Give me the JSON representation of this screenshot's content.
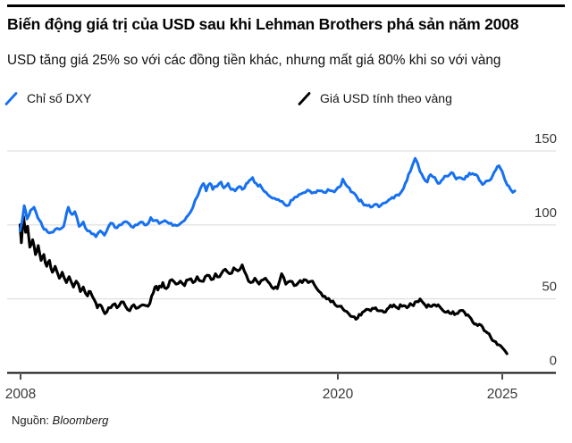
{
  "header": {
    "title": "Biến động giá trị của USD sau khi Lehman Brothers phá sản năm 2008",
    "subtitle": "USD tăng giá 25% so với các đồng tiền khác, nhưng mất giá 80% khi so với vàng"
  },
  "legend": [
    {
      "label": "Chỉ số DXY",
      "color": "#1670f0"
    },
    {
      "label": "Giá USD tính theo vàng",
      "color": "#000000"
    }
  ],
  "source": {
    "prefix": "Nguồn:",
    "name": "Bloomberg"
  },
  "chart_data": {
    "type": "line",
    "title": "Biến động giá trị của USD sau khi Lehman Brothers phá sản năm 2008",
    "xlabel": "",
    "ylabel": "",
    "xlim": [
      2008.7,
      2025.4
    ],
    "ylim": [
      0,
      150
    ],
    "grid": true,
    "legend_position": "top",
    "grid_color": "#d8d8d8",
    "axis_color": "#0f0f0f",
    "label_color": "#3a3a3a",
    "x_ticks": [
      {
        "label": "2008",
        "year": 2008.72
      },
      {
        "label": "2020",
        "year": 2020.0
      },
      {
        "label": "2025",
        "year": 2025.0
      }
    ],
    "y_ticks": [
      0,
      50,
      100,
      150
    ],
    "series": [
      {
        "name": "Giá USD tính theo vàng",
        "color": "#000000",
        "width": 3.1,
        "noise": 1.7,
        "points": [
          [
            2008.7,
            100
          ],
          [
            2008.75,
            88
          ],
          [
            2008.82,
            106
          ],
          [
            2008.9,
            95
          ],
          [
            2008.97,
            99
          ],
          [
            2009.05,
            85
          ],
          [
            2009.15,
            90
          ],
          [
            2009.25,
            80
          ],
          [
            2009.35,
            86
          ],
          [
            2009.45,
            76
          ],
          [
            2009.55,
            80
          ],
          [
            2009.65,
            72
          ],
          [
            2009.75,
            76
          ],
          [
            2009.85,
            68
          ],
          [
            2009.95,
            72
          ],
          [
            2010.1,
            64
          ],
          [
            2010.2,
            68
          ],
          [
            2010.35,
            61
          ],
          [
            2010.45,
            65
          ],
          [
            2010.6,
            58
          ],
          [
            2010.7,
            62
          ],
          [
            2010.85,
            55
          ],
          [
            2010.95,
            58
          ],
          [
            2011.1,
            52
          ],
          [
            2011.2,
            55
          ],
          [
            2011.35,
            49
          ],
          [
            2011.45,
            44
          ],
          [
            2011.55,
            46
          ],
          [
            2011.72,
            40
          ],
          [
            2011.85,
            44
          ],
          [
            2012.0,
            46
          ],
          [
            2012.15,
            44
          ],
          [
            2012.3,
            48
          ],
          [
            2012.45,
            45
          ],
          [
            2012.6,
            42
          ],
          [
            2012.75,
            46
          ],
          [
            2012.9,
            44
          ],
          [
            2013.05,
            46
          ],
          [
            2013.25,
            45
          ],
          [
            2013.38,
            52
          ],
          [
            2013.5,
            58
          ],
          [
            2013.6,
            56
          ],
          [
            2013.78,
            61
          ],
          [
            2013.9,
            57
          ],
          [
            2014.1,
            63
          ],
          [
            2014.25,
            60
          ],
          [
            2014.4,
            62
          ],
          [
            2014.55,
            59
          ],
          [
            2014.7,
            63
          ],
          [
            2014.85,
            61
          ],
          [
            2015.0,
            65
          ],
          [
            2015.15,
            62
          ],
          [
            2015.35,
            66
          ],
          [
            2015.5,
            63
          ],
          [
            2015.65,
            67
          ],
          [
            2015.8,
            65
          ],
          [
            2016.0,
            70
          ],
          [
            2016.15,
            67
          ],
          [
            2016.3,
            71
          ],
          [
            2016.45,
            69
          ],
          [
            2016.6,
            73
          ],
          [
            2016.75,
            66
          ],
          [
            2016.9,
            61
          ],
          [
            2017.05,
            64
          ],
          [
            2017.2,
            60
          ],
          [
            2017.35,
            63
          ],
          [
            2017.5,
            62
          ],
          [
            2017.65,
            58
          ],
          [
            2017.85,
            57
          ],
          [
            2018.0,
            67
          ],
          [
            2018.15,
            60
          ],
          [
            2018.3,
            62
          ],
          [
            2018.45,
            59
          ],
          [
            2018.6,
            61
          ],
          [
            2018.8,
            63
          ],
          [
            2018.95,
            61
          ],
          [
            2019.1,
            62
          ],
          [
            2019.25,
            57
          ],
          [
            2019.4,
            54
          ],
          [
            2019.6,
            50
          ],
          [
            2019.75,
            48
          ],
          [
            2019.9,
            46
          ],
          [
            2020.05,
            45
          ],
          [
            2020.2,
            42
          ],
          [
            2020.33,
            40
          ],
          [
            2020.45,
            38
          ],
          [
            2020.6,
            37
          ],
          [
            2020.75,
            41
          ],
          [
            2020.87,
            43
          ],
          [
            2021.0,
            42
          ],
          [
            2021.15,
            44
          ],
          [
            2021.3,
            42
          ],
          [
            2021.4,
            41
          ],
          [
            2021.55,
            44
          ],
          [
            2021.7,
            46
          ],
          [
            2021.8,
            44
          ],
          [
            2021.95,
            45
          ],
          [
            2022.1,
            44
          ],
          [
            2022.25,
            46
          ],
          [
            2022.35,
            48
          ],
          [
            2022.5,
            50
          ],
          [
            2022.65,
            46
          ],
          [
            2022.8,
            45
          ],
          [
            2022.9,
            46
          ],
          [
            2023.05,
            46
          ],
          [
            2023.2,
            42
          ],
          [
            2023.3,
            41
          ],
          [
            2023.45,
            40
          ],
          [
            2023.6,
            40
          ],
          [
            2023.7,
            42
          ],
          [
            2023.85,
            41
          ],
          [
            2024.0,
            38
          ],
          [
            2024.15,
            33
          ],
          [
            2024.25,
            32
          ],
          [
            2024.4,
            31
          ],
          [
            2024.55,
            27
          ],
          [
            2024.65,
            24
          ],
          [
            2024.8,
            21
          ],
          [
            2024.9,
            19
          ],
          [
            2025.0,
            17
          ],
          [
            2025.08,
            15
          ],
          [
            2025.14,
            13
          ]
        ]
      },
      {
        "name": "Chỉ số DXY",
        "color": "#1670f0",
        "width": 3.0,
        "noise": 1.3,
        "points": [
          [
            2008.7,
            96
          ],
          [
            2008.78,
            103
          ],
          [
            2008.85,
            113
          ],
          [
            2008.95,
            104
          ],
          [
            2009.08,
            110
          ],
          [
            2009.2,
            112
          ],
          [
            2009.33,
            105
          ],
          [
            2009.5,
            99
          ],
          [
            2009.62,
            97
          ],
          [
            2009.8,
            95
          ],
          [
            2009.95,
            97
          ],
          [
            2010.1,
            97
          ],
          [
            2010.25,
            99
          ],
          [
            2010.42,
            112
          ],
          [
            2010.55,
            107
          ],
          [
            2010.65,
            109
          ],
          [
            2010.8,
            99
          ],
          [
            2010.95,
            102
          ],
          [
            2011.1,
            96
          ],
          [
            2011.25,
            94
          ],
          [
            2011.4,
            92
          ],
          [
            2011.55,
            96
          ],
          [
            2011.7,
            93
          ],
          [
            2011.85,
            99
          ],
          [
            2012.0,
            101
          ],
          [
            2012.15,
            98
          ],
          [
            2012.3,
            100
          ],
          [
            2012.5,
            102
          ],
          [
            2012.65,
            99
          ],
          [
            2012.8,
            100
          ],
          [
            2013.0,
            102
          ],
          [
            2013.2,
            100
          ],
          [
            2013.35,
            105
          ],
          [
            2013.5,
            103
          ],
          [
            2013.65,
            101
          ],
          [
            2013.85,
            103
          ],
          [
            2014.0,
            101
          ],
          [
            2014.2,
            100
          ],
          [
            2014.4,
            101
          ],
          [
            2014.55,
            103
          ],
          [
            2014.7,
            107
          ],
          [
            2014.85,
            112
          ],
          [
            2015.0,
            119
          ],
          [
            2015.1,
            124
          ],
          [
            2015.22,
            128
          ],
          [
            2015.32,
            123
          ],
          [
            2015.45,
            128
          ],
          [
            2015.55,
            124
          ],
          [
            2015.7,
            126
          ],
          [
            2015.85,
            129
          ],
          [
            2015.95,
            125
          ],
          [
            2016.1,
            128
          ],
          [
            2016.2,
            124
          ],
          [
            2016.35,
            123
          ],
          [
            2016.5,
            126
          ],
          [
            2016.6,
            124
          ],
          [
            2016.75,
            128
          ],
          [
            2016.85,
            130
          ],
          [
            2016.97,
            132
          ],
          [
            2017.1,
            128
          ],
          [
            2017.3,
            125
          ],
          [
            2017.45,
            122
          ],
          [
            2017.6,
            119
          ],
          [
            2017.75,
            118
          ],
          [
            2017.95,
            116
          ],
          [
            2018.1,
            114
          ],
          [
            2018.2,
            113
          ],
          [
            2018.4,
            117
          ],
          [
            2018.55,
            119
          ],
          [
            2018.7,
            121
          ],
          [
            2018.85,
            122
          ],
          [
            2019.0,
            123
          ],
          [
            2019.15,
            122
          ],
          [
            2019.35,
            123
          ],
          [
            2019.5,
            122
          ],
          [
            2019.65,
            124
          ],
          [
            2019.8,
            123
          ],
          [
            2019.95,
            124
          ],
          [
            2020.1,
            127
          ],
          [
            2020.15,
            131
          ],
          [
            2020.25,
            127
          ],
          [
            2020.35,
            125
          ],
          [
            2020.45,
            122
          ],
          [
            2020.6,
            118
          ],
          [
            2020.75,
            115
          ],
          [
            2020.9,
            113
          ],
          [
            2021.0,
            112
          ],
          [
            2021.15,
            114
          ],
          [
            2021.3,
            113
          ],
          [
            2021.45,
            115
          ],
          [
            2021.55,
            117
          ],
          [
            2021.7,
            118
          ],
          [
            2021.85,
            120
          ],
          [
            2021.95,
            123
          ],
          [
            2022.1,
            130
          ],
          [
            2022.2,
            136
          ],
          [
            2022.28,
            141
          ],
          [
            2022.35,
            145
          ],
          [
            2022.42,
            142
          ],
          [
            2022.5,
            136
          ],
          [
            2022.6,
            132
          ],
          [
            2022.72,
            129
          ],
          [
            2022.82,
            134
          ],
          [
            2022.95,
            132
          ],
          [
            2023.05,
            128
          ],
          [
            2023.15,
            130
          ],
          [
            2023.25,
            133
          ],
          [
            2023.4,
            134
          ],
          [
            2023.5,
            135
          ],
          [
            2023.6,
            131
          ],
          [
            2023.7,
            132
          ],
          [
            2023.8,
            131
          ],
          [
            2023.9,
            133
          ],
          [
            2024.0,
            135
          ],
          [
            2024.15,
            134
          ],
          [
            2024.25,
            133
          ],
          [
            2024.35,
            129
          ],
          [
            2024.45,
            128
          ],
          [
            2024.6,
            130
          ],
          [
            2024.7,
            133
          ],
          [
            2024.8,
            137
          ],
          [
            2024.9,
            140
          ],
          [
            2025.0,
            136
          ],
          [
            2025.07,
            131
          ],
          [
            2025.15,
            127
          ],
          [
            2025.25,
            124
          ],
          [
            2025.32,
            122
          ],
          [
            2025.38,
            123
          ]
        ]
      }
    ]
  }
}
